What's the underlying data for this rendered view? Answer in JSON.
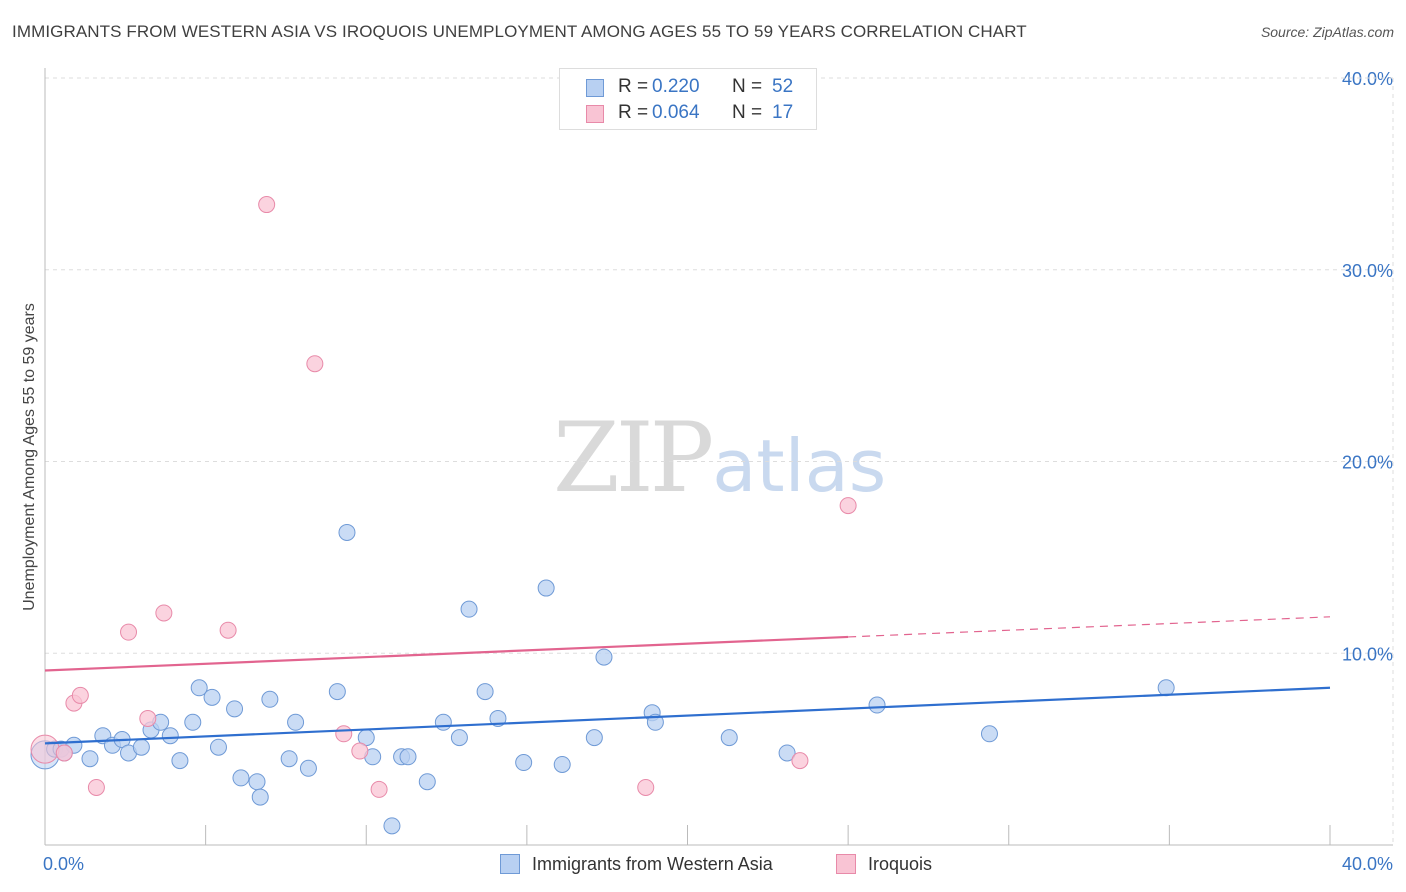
{
  "header": {
    "title": "IMMIGRANTS FROM WESTERN ASIA VS IROQUOIS UNEMPLOYMENT AMONG AGES 55 TO 59 YEARS CORRELATION CHART",
    "source": "Source: ZipAtlas.com"
  },
  "watermark": {
    "zip": "ZIP",
    "atlas": "atlas"
  },
  "legend_top": {
    "rows": [
      {
        "r_label": "R =",
        "r_value": "0.220",
        "n_label": "N =",
        "n_value": "52"
      },
      {
        "r_label": "R =",
        "r_value": "0.064",
        "n_label": "N =",
        "n_value": "17"
      }
    ]
  },
  "legend_bottom": {
    "items": [
      {
        "label": "Immigrants from Western Asia"
      },
      {
        "label": "Iroquois"
      }
    ]
  },
  "colors": {
    "blue_fill": "#b8d0f2",
    "blue_stroke": "#6f9ad6",
    "blue_line": "#2f6fcf",
    "pink_fill": "#f9c4d4",
    "pink_stroke": "#e88aa9",
    "pink_line": "#e2648f",
    "tick_label": "#3a75c4",
    "grid": "#dddddd"
  },
  "chart_data": {
    "type": "scatter",
    "title": "IMMIGRANTS FROM WESTERN ASIA VS IROQUOIS UNEMPLOYMENT AMONG AGES 55 TO 59 YEARS CORRELATION CHART",
    "xlabel": "",
    "ylabel": "Unemployment Among Ages 55 to 59 years",
    "xlim": [
      0,
      40
    ],
    "ylim": [
      0,
      40
    ],
    "x_tick_labels": [
      "0.0%",
      "40.0%"
    ],
    "y_ticks": [
      10,
      20,
      30,
      40
    ],
    "y_tick_labels": [
      "10.0%",
      "20.0%",
      "30.0%",
      "40.0%"
    ],
    "grid": true,
    "series": [
      {
        "name": "Immigrants from Western Asia",
        "color": "blue",
        "R": 0.22,
        "N": 52,
        "trend": {
          "x": [
            0,
            40
          ],
          "y": [
            5.3,
            8.2
          ],
          "dashed_from": null
        },
        "points": [
          [
            0.0,
            4.7
          ],
          [
            0.3,
            5.0
          ],
          [
            0.5,
            5.0
          ],
          [
            0.9,
            5.2
          ],
          [
            0.6,
            4.8
          ],
          [
            1.4,
            4.5
          ],
          [
            1.8,
            5.7
          ],
          [
            2.1,
            5.2
          ],
          [
            2.4,
            5.5
          ],
          [
            2.6,
            4.8
          ],
          [
            3.0,
            5.1
          ],
          [
            3.3,
            6.0
          ],
          [
            3.6,
            6.4
          ],
          [
            3.9,
            5.7
          ],
          [
            4.2,
            4.4
          ],
          [
            4.6,
            6.4
          ],
          [
            4.8,
            8.2
          ],
          [
            5.2,
            7.7
          ],
          [
            5.4,
            5.1
          ],
          [
            5.9,
            7.1
          ],
          [
            6.1,
            3.5
          ],
          [
            6.6,
            3.3
          ],
          [
            6.7,
            2.5
          ],
          [
            7.0,
            7.6
          ],
          [
            7.6,
            4.5
          ],
          [
            7.8,
            6.4
          ],
          [
            8.2,
            4.0
          ],
          [
            9.1,
            8.0
          ],
          [
            9.4,
            16.3
          ],
          [
            10.0,
            5.6
          ],
          [
            10.2,
            4.6
          ],
          [
            10.8,
            1.0
          ],
          [
            11.1,
            4.6
          ],
          [
            11.3,
            4.6
          ],
          [
            11.9,
            3.3
          ],
          [
            12.4,
            6.4
          ],
          [
            12.9,
            5.6
          ],
          [
            13.2,
            12.3
          ],
          [
            13.7,
            8.0
          ],
          [
            14.1,
            6.6
          ],
          [
            14.9,
            4.3
          ],
          [
            15.6,
            13.4
          ],
          [
            16.1,
            4.2
          ],
          [
            17.1,
            5.6
          ],
          [
            17.4,
            9.8
          ],
          [
            18.9,
            6.9
          ],
          [
            19.0,
            6.4
          ],
          [
            21.3,
            5.6
          ],
          [
            23.1,
            4.8
          ],
          [
            25.9,
            7.3
          ],
          [
            29.4,
            5.8
          ],
          [
            34.9,
            8.2
          ]
        ]
      },
      {
        "name": "Iroquois",
        "color": "pink",
        "R": 0.064,
        "N": 17,
        "trend": {
          "x": [
            0,
            40
          ],
          "y": [
            9.1,
            11.9
          ],
          "dashed_from": 25
        },
        "points": [
          [
            0.0,
            5.0
          ],
          [
            0.6,
            4.8
          ],
          [
            0.9,
            7.4
          ],
          [
            1.1,
            7.8
          ],
          [
            1.6,
            3.0
          ],
          [
            2.6,
            11.1
          ],
          [
            3.2,
            6.6
          ],
          [
            3.7,
            12.1
          ],
          [
            5.7,
            11.2
          ],
          [
            6.9,
            33.4
          ],
          [
            8.4,
            25.1
          ],
          [
            9.3,
            5.8
          ],
          [
            9.8,
            4.9
          ],
          [
            10.4,
            2.9
          ],
          [
            18.7,
            3.0
          ],
          [
            23.5,
            4.4
          ],
          [
            25.0,
            17.7
          ]
        ]
      }
    ]
  }
}
